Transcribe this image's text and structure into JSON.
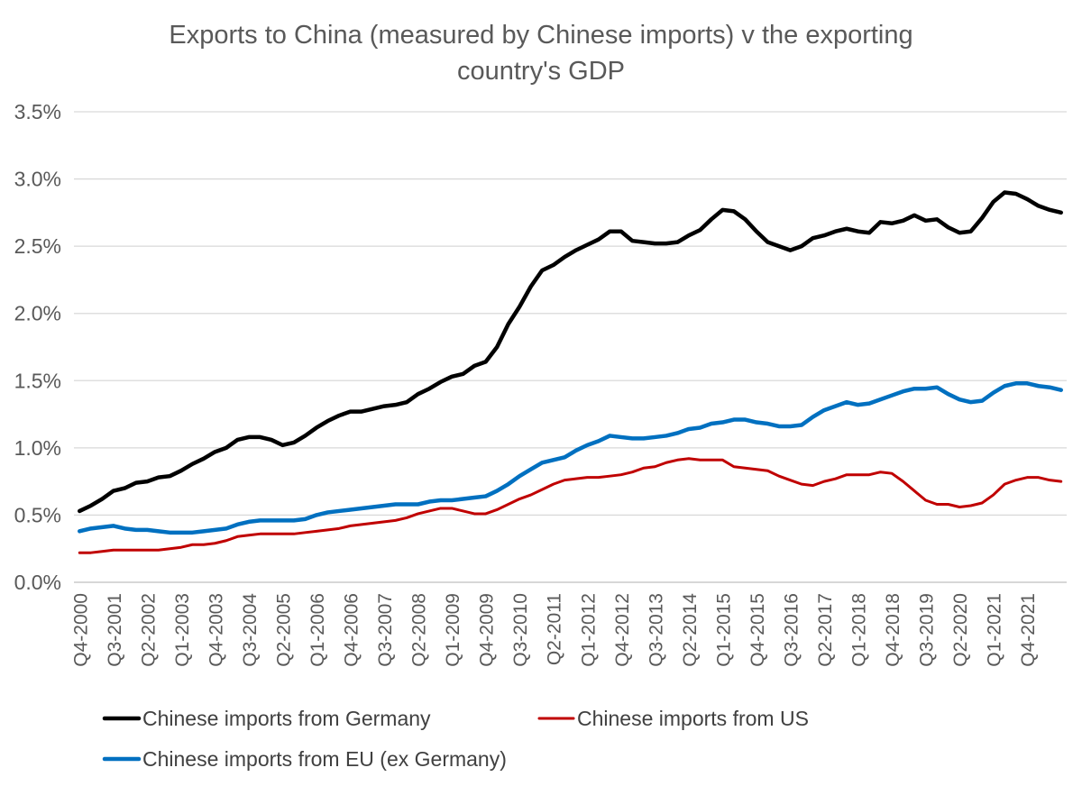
{
  "chart_data": {
    "type": "line",
    "title_lines": [
      "Exports to China (measured by Chinese imports) v the exporting",
      "country's GDP"
    ],
    "xlabel": "",
    "ylabel": "",
    "ylim": [
      0,
      0.035
    ],
    "y_ticks": [
      "0.0%",
      "0.5%",
      "1.0%",
      "1.5%",
      "2.0%",
      "2.5%",
      "3.0%",
      "3.5%"
    ],
    "grid": true,
    "legend_position": "bottom",
    "x_tick_labels": [
      "Q4-2000",
      "Q3-2001",
      "Q2-2002",
      "Q1-2003",
      "Q4-2003",
      "Q3-2004",
      "Q2-2005",
      "Q1-2006",
      "Q4-2006",
      "Q3-2007",
      "Q2-2008",
      "Q1-2009",
      "Q4-2009",
      "Q3-2010",
      "Q2-2011",
      "Q1-2012",
      "Q4-2012",
      "Q3-2013",
      "Q2-2014",
      "Q1-2015",
      "Q4-2015",
      "Q3-2016",
      "Q2-2017",
      "Q1-2018",
      "Q4-2018",
      "Q3-2019",
      "Q2-2020",
      "Q1-2021",
      "Q4-2021"
    ],
    "x": [
      "Q4-2000",
      "Q1-2001",
      "Q2-2001",
      "Q3-2001",
      "Q4-2001",
      "Q1-2002",
      "Q2-2002",
      "Q3-2002",
      "Q4-2002",
      "Q1-2003",
      "Q2-2003",
      "Q3-2003",
      "Q4-2003",
      "Q1-2004",
      "Q2-2004",
      "Q3-2004",
      "Q4-2004",
      "Q1-2005",
      "Q2-2005",
      "Q3-2005",
      "Q4-2005",
      "Q1-2006",
      "Q2-2006",
      "Q3-2006",
      "Q4-2006",
      "Q1-2007",
      "Q2-2007",
      "Q3-2007",
      "Q4-2007",
      "Q1-2008",
      "Q2-2008",
      "Q3-2008",
      "Q4-2008",
      "Q1-2009",
      "Q2-2009",
      "Q3-2009",
      "Q4-2009",
      "Q1-2010",
      "Q2-2010",
      "Q3-2010",
      "Q4-2010",
      "Q1-2011",
      "Q2-2011",
      "Q3-2011",
      "Q4-2011",
      "Q1-2012",
      "Q2-2012",
      "Q3-2012",
      "Q4-2012",
      "Q1-2013",
      "Q2-2013",
      "Q3-2013",
      "Q4-2013",
      "Q1-2014",
      "Q2-2014",
      "Q3-2014",
      "Q4-2014",
      "Q1-2015",
      "Q2-2015",
      "Q3-2015",
      "Q4-2015",
      "Q1-2016",
      "Q2-2016",
      "Q3-2016",
      "Q4-2016",
      "Q1-2017",
      "Q2-2017",
      "Q3-2017",
      "Q4-2017",
      "Q1-2018",
      "Q2-2018",
      "Q3-2018",
      "Q4-2018",
      "Q1-2019",
      "Q2-2019",
      "Q3-2019",
      "Q4-2019",
      "Q1-2020",
      "Q2-2020",
      "Q3-2020",
      "Q4-2020",
      "Q1-2021",
      "Q2-2021",
      "Q3-2021",
      "Q4-2021",
      "Q1-2022",
      "Q2-2022",
      "Q3-2022"
    ],
    "series": [
      {
        "name": "Chinese imports from Germany",
        "color": "#000000",
        "values": [
          0.0053,
          0.0057,
          0.0062,
          0.0068,
          0.007,
          0.0074,
          0.0075,
          0.0078,
          0.0079,
          0.0083,
          0.0088,
          0.0092,
          0.0097,
          0.01,
          0.0106,
          0.0108,
          0.0108,
          0.0106,
          0.0102,
          0.0104,
          0.0109,
          0.0115,
          0.012,
          0.0124,
          0.0127,
          0.0127,
          0.0129,
          0.0131,
          0.0132,
          0.0134,
          0.014,
          0.0144,
          0.0149,
          0.0153,
          0.0155,
          0.0161,
          0.0164,
          0.0175,
          0.0192,
          0.0205,
          0.022,
          0.0232,
          0.0236,
          0.0242,
          0.0247,
          0.0251,
          0.0255,
          0.0261,
          0.0261,
          0.0254,
          0.0253,
          0.0252,
          0.0252,
          0.0253,
          0.0258,
          0.0262,
          0.027,
          0.0277,
          0.0276,
          0.027,
          0.0261,
          0.0253,
          0.025,
          0.0247,
          0.025,
          0.0256,
          0.0258,
          0.0261,
          0.0263,
          0.0261,
          0.026,
          0.0268,
          0.0267,
          0.0269,
          0.0273,
          0.0269,
          0.027,
          0.0264,
          0.026,
          0.0261,
          0.0271,
          0.0283,
          0.029,
          0.0289,
          0.0285,
          0.028,
          0.0277,
          0.0275
        ]
      },
      {
        "name": "Chinese imports from US",
        "color": "#c00000",
        "values": [
          0.0022,
          0.0022,
          0.0023,
          0.0024,
          0.0024,
          0.0024,
          0.0024,
          0.0024,
          0.0025,
          0.0026,
          0.0028,
          0.0028,
          0.0029,
          0.0031,
          0.0034,
          0.0035,
          0.0036,
          0.0036,
          0.0036,
          0.0036,
          0.0037,
          0.0038,
          0.0039,
          0.004,
          0.0042,
          0.0043,
          0.0044,
          0.0045,
          0.0046,
          0.0048,
          0.0051,
          0.0053,
          0.0055,
          0.0055,
          0.0053,
          0.0051,
          0.0051,
          0.0054,
          0.0058,
          0.0062,
          0.0065,
          0.0069,
          0.0073,
          0.0076,
          0.0077,
          0.0078,
          0.0078,
          0.0079,
          0.008,
          0.0082,
          0.0085,
          0.0086,
          0.0089,
          0.0091,
          0.0092,
          0.0091,
          0.0091,
          0.0091,
          0.0086,
          0.0085,
          0.0084,
          0.0083,
          0.0079,
          0.0076,
          0.0073,
          0.0072,
          0.0075,
          0.0077,
          0.008,
          0.008,
          0.008,
          0.0082,
          0.0081,
          0.0075,
          0.0068,
          0.0061,
          0.0058,
          0.0058,
          0.0056,
          0.0057,
          0.0059,
          0.0065,
          0.0073,
          0.0076,
          0.0078,
          0.0078,
          0.0076,
          0.0075
        ]
      },
      {
        "name": "Chinese imports from EU (ex Germany)",
        "color": "#0070c0",
        "values": [
          0.0038,
          0.004,
          0.0041,
          0.0042,
          0.004,
          0.0039,
          0.0039,
          0.0038,
          0.0037,
          0.0037,
          0.0037,
          0.0038,
          0.0039,
          0.004,
          0.0043,
          0.0045,
          0.0046,
          0.0046,
          0.0046,
          0.0046,
          0.0047,
          0.005,
          0.0052,
          0.0053,
          0.0054,
          0.0055,
          0.0056,
          0.0057,
          0.0058,
          0.0058,
          0.0058,
          0.006,
          0.0061,
          0.0061,
          0.0062,
          0.0063,
          0.0064,
          0.0068,
          0.0073,
          0.0079,
          0.0084,
          0.0089,
          0.0091,
          0.0093,
          0.0098,
          0.0102,
          0.0105,
          0.0109,
          0.0108,
          0.0107,
          0.0107,
          0.0108,
          0.0109,
          0.0111,
          0.0114,
          0.0115,
          0.0118,
          0.0119,
          0.0121,
          0.0121,
          0.0119,
          0.0118,
          0.0116,
          0.0116,
          0.0117,
          0.0123,
          0.0128,
          0.0131,
          0.0134,
          0.0132,
          0.0133,
          0.0136,
          0.0139,
          0.0142,
          0.0144,
          0.0144,
          0.0145,
          0.014,
          0.0136,
          0.0134,
          0.0135,
          0.0141,
          0.0146,
          0.0148,
          0.0148,
          0.0146,
          0.0145,
          0.0143
        ]
      }
    ]
  }
}
